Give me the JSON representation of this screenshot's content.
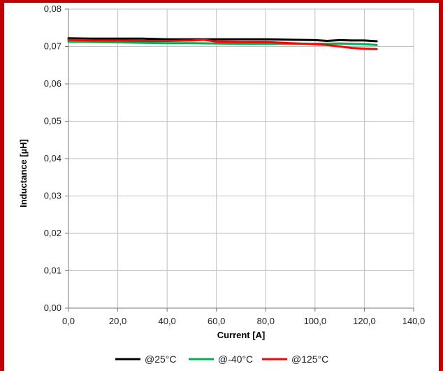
{
  "chart_data": {
    "type": "line",
    "xlabel": "Current [A]",
    "ylabel": "Inductance [µH]",
    "xlim": [
      0,
      140
    ],
    "ylim": [
      0,
      0.08
    ],
    "x_ticks": [
      "0,0",
      "20,0",
      "40,0",
      "60,0",
      "80,0",
      "100,0",
      "120,0",
      "140,0"
    ],
    "y_ticks": [
      "0,00",
      "0,01",
      "0,02",
      "0,03",
      "0,04",
      "0,05",
      "0,06",
      "0,07",
      "0,08"
    ],
    "grid": true,
    "legend_position": "bottom",
    "series": [
      {
        "name": "@25°C",
        "color": "#000000",
        "x": [
          0,
          10,
          20,
          30,
          40,
          50,
          60,
          70,
          80,
          90,
          100,
          105,
          110,
          115,
          120,
          125
        ],
        "y": [
          0.0722,
          0.0721,
          0.0721,
          0.0721,
          0.0719,
          0.0719,
          0.0719,
          0.0719,
          0.0719,
          0.0718,
          0.0717,
          0.0715,
          0.0717,
          0.0716,
          0.0716,
          0.0714
        ]
      },
      {
        "name": "@-40°C",
        "color": "#00b050",
        "x": [
          0,
          10,
          20,
          30,
          40,
          50,
          60,
          70,
          80,
          90,
          100,
          110,
          115,
          120,
          125
        ],
        "y": [
          0.0713,
          0.0712,
          0.0711,
          0.071,
          0.0709,
          0.0709,
          0.0708,
          0.0707,
          0.0707,
          0.0707,
          0.0707,
          0.0708,
          0.0707,
          0.0706,
          0.0704
        ]
      },
      {
        "name": "@125°C",
        "color": "#ff0000",
        "x": [
          0,
          10,
          20,
          30,
          40,
          50,
          55,
          60,
          70,
          80,
          90,
          100,
          105,
          110,
          115,
          120,
          125
        ],
        "y": [
          0.0718,
          0.0716,
          0.0716,
          0.0715,
          0.0715,
          0.0716,
          0.0718,
          0.0713,
          0.0712,
          0.0712,
          0.0709,
          0.0706,
          0.0704,
          0.07,
          0.0696,
          0.0694,
          0.0693
        ]
      }
    ]
  }
}
